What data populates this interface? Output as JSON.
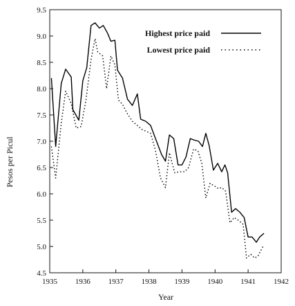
{
  "chart_data": {
    "type": "line",
    "title": "",
    "xlabel": "Year",
    "ylabel": "Pesos per Picul",
    "xlim": [
      1935,
      1942
    ],
    "ylim": [
      4.5,
      9.5
    ],
    "x_ticks": [
      "1935",
      "1936",
      "1937",
      "1938",
      "1939",
      "1940",
      "1941",
      "1942"
    ],
    "y_ticks": [
      "4.5",
      "5.0",
      "5.5",
      "6.0",
      "6.5",
      "7.0",
      "7.5",
      "8.0",
      "8.5",
      "9.0",
      "9.5"
    ],
    "grid": false,
    "legend_position": "top-right",
    "series": [
      {
        "name": "Highest price paid",
        "style": "solid",
        "color": "#000000",
        "points": [
          [
            1935.05,
            8.2
          ],
          [
            1935.18,
            6.9
          ],
          [
            1935.35,
            8.1
          ],
          [
            1935.48,
            8.37
          ],
          [
            1935.65,
            8.22
          ],
          [
            1935.7,
            7.6
          ],
          [
            1935.88,
            7.4
          ],
          [
            1936.0,
            8.15
          ],
          [
            1936.12,
            8.4
          ],
          [
            1936.25,
            9.2
          ],
          [
            1936.37,
            9.25
          ],
          [
            1936.5,
            9.15
          ],
          [
            1936.62,
            9.2
          ],
          [
            1936.75,
            9.05
          ],
          [
            1936.85,
            8.9
          ],
          [
            1936.97,
            8.92
          ],
          [
            1937.05,
            8.35
          ],
          [
            1937.2,
            8.2
          ],
          [
            1937.35,
            7.8
          ],
          [
            1937.5,
            7.68
          ],
          [
            1937.65,
            7.9
          ],
          [
            1937.75,
            7.42
          ],
          [
            1937.9,
            7.38
          ],
          [
            1938.05,
            7.3
          ],
          [
            1938.2,
            7.05
          ],
          [
            1938.38,
            6.75
          ],
          [
            1938.5,
            6.62
          ],
          [
            1938.62,
            7.12
          ],
          [
            1938.75,
            7.05
          ],
          [
            1938.88,
            6.55
          ],
          [
            1939.0,
            6.55
          ],
          [
            1939.12,
            6.7
          ],
          [
            1939.25,
            7.05
          ],
          [
            1939.38,
            7.02
          ],
          [
            1939.5,
            7.0
          ],
          [
            1939.62,
            6.9
          ],
          [
            1939.72,
            7.15
          ],
          [
            1939.82,
            6.92
          ],
          [
            1939.95,
            6.45
          ],
          [
            1940.08,
            6.58
          ],
          [
            1940.2,
            6.42
          ],
          [
            1940.3,
            6.55
          ],
          [
            1940.38,
            6.4
          ],
          [
            1940.5,
            5.65
          ],
          [
            1940.62,
            5.72
          ],
          [
            1940.75,
            5.65
          ],
          [
            1940.88,
            5.55
          ],
          [
            1941.0,
            5.18
          ],
          [
            1941.12,
            5.18
          ],
          [
            1941.25,
            5.08
          ],
          [
            1941.35,
            5.18
          ],
          [
            1941.48,
            5.25
          ]
        ]
      },
      {
        "name": "Lowest price paid",
        "style": "dotted",
        "color": "#000000",
        "points": [
          [
            1935.05,
            6.9
          ],
          [
            1935.18,
            6.3
          ],
          [
            1935.35,
            7.35
          ],
          [
            1935.48,
            7.95
          ],
          [
            1935.65,
            7.72
          ],
          [
            1935.8,
            7.25
          ],
          [
            1935.95,
            7.28
          ],
          [
            1936.1,
            7.8
          ],
          [
            1936.25,
            8.55
          ],
          [
            1936.37,
            8.95
          ],
          [
            1936.45,
            8.7
          ],
          [
            1936.6,
            8.62
          ],
          [
            1936.72,
            8.0
          ],
          [
            1936.85,
            8.62
          ],
          [
            1936.97,
            8.45
          ],
          [
            1937.08,
            7.78
          ],
          [
            1937.2,
            7.7
          ],
          [
            1937.35,
            7.52
          ],
          [
            1937.5,
            7.38
          ],
          [
            1937.65,
            7.3
          ],
          [
            1937.8,
            7.22
          ],
          [
            1937.95,
            7.18
          ],
          [
            1938.05,
            7.15
          ],
          [
            1938.2,
            6.82
          ],
          [
            1938.35,
            6.3
          ],
          [
            1938.5,
            6.12
          ],
          [
            1938.62,
            6.78
          ],
          [
            1938.78,
            6.4
          ],
          [
            1938.92,
            6.42
          ],
          [
            1939.08,
            6.42
          ],
          [
            1939.2,
            6.5
          ],
          [
            1939.35,
            6.85
          ],
          [
            1939.48,
            6.82
          ],
          [
            1939.6,
            6.58
          ],
          [
            1939.72,
            5.92
          ],
          [
            1939.85,
            6.2
          ],
          [
            1939.98,
            6.15
          ],
          [
            1940.1,
            6.1
          ],
          [
            1940.2,
            6.12
          ],
          [
            1940.32,
            6.05
          ],
          [
            1940.45,
            5.45
          ],
          [
            1940.58,
            5.55
          ],
          [
            1940.7,
            5.5
          ],
          [
            1940.85,
            5.42
          ],
          [
            1940.95,
            4.78
          ],
          [
            1941.08,
            4.85
          ],
          [
            1941.2,
            4.78
          ],
          [
            1941.3,
            4.82
          ],
          [
            1941.45,
            5.0
          ]
        ]
      }
    ]
  }
}
